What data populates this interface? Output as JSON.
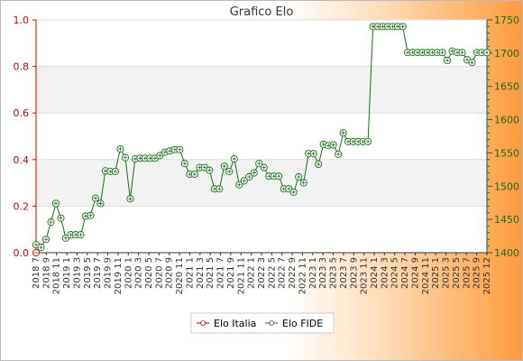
{
  "chart_data": {
    "type": "line",
    "title": "Grafico Elo",
    "xlabel": "",
    "ylabel": "",
    "legend_position": "bottom",
    "grid": true,
    "left_axis": {
      "ylim": [
        0.0,
        1.0
      ],
      "ticks": [
        "0.0",
        "0.2",
        "0.4",
        "0.6",
        "0.8",
        "1.0"
      ]
    },
    "right_axis": {
      "ylim": [
        1400,
        1750
      ],
      "ticks": [
        "1400",
        "1450",
        "1500",
        "1550",
        "1600",
        "1650",
        "1700",
        "1750"
      ]
    },
    "x_tick_labels": [
      "2018 7",
      "2018 9",
      "2018 11",
      "2019 1",
      "2019 3",
      "2019 5",
      "2019 7",
      "2019 9",
      "2019 11",
      "2020 1",
      "2020 3",
      "2020 5",
      "2020 7",
      "2020 9",
      "2020 11",
      "2021 1",
      "2021 3",
      "2021 5",
      "2021 7",
      "2021 9",
      "2021 11",
      "2022 1",
      "2022 3",
      "2022 5",
      "2022 7",
      "2022 9",
      "2022 11",
      "2023 1",
      "2023 3",
      "2023 5",
      "2023 7",
      "2023 9",
      "2023 11",
      "2024 1",
      "2024 3",
      "2024 5",
      "2024 7",
      "2024 9",
      "2024 11",
      "2025 1",
      "2025 3",
      "2025 5",
      "2025 7",
      "2025 9",
      "2025 12"
    ],
    "series": [
      {
        "name": "Elo Italia",
        "axis": "left",
        "color": "#cc0000",
        "values": [
          0.0
        ]
      },
      {
        "name": "Elo FIDE",
        "axis": "right",
        "color": "#1a6b1a",
        "values": [
          1412,
          1408,
          1420,
          1446,
          1474,
          1452,
          1422,
          1427,
          1427,
          1427,
          1455,
          1456,
          1482,
          1474,
          1523,
          1522,
          1522,
          1556,
          1543,
          1481,
          1541,
          1542,
          1542,
          1542,
          1542,
          1546,
          1551,
          1553,
          1555,
          1555,
          1534,
          1518,
          1518,
          1528,
          1528,
          1524,
          1496,
          1496,
          1530,
          1522,
          1541,
          1502,
          1508,
          1514,
          1520,
          1534,
          1528,
          1515,
          1515,
          1515,
          1496,
          1496,
          1491,
          1514,
          1505,
          1549,
          1549,
          1533,
          1563,
          1561,
          1562,
          1548,
          1580,
          1567,
          1567,
          1567,
          1567,
          1567,
          1740,
          1740,
          1740,
          1740,
          1740,
          1740,
          1740,
          1701,
          1701,
          1701,
          1701,
          1701,
          1701,
          1701,
          1701,
          1689,
          1703,
          1701,
          1701,
          1690,
          1686,
          1701,
          1701,
          1701
        ]
      }
    ]
  }
}
